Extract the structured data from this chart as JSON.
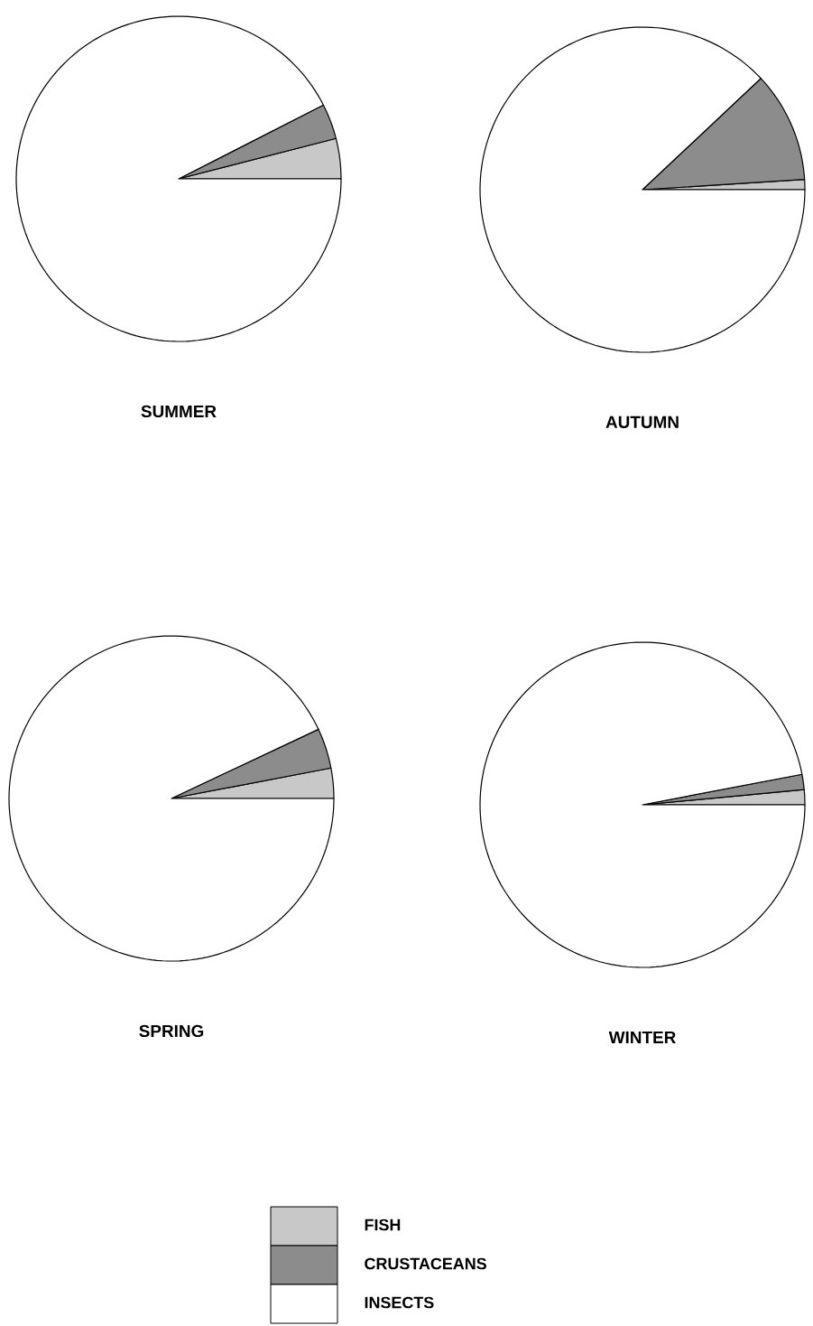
{
  "chart_data": [
    {
      "type": "pie",
      "title": "SUMMER",
      "categories": [
        null,
        null,
        null
      ],
      "values": [
        4,
        3.5,
        92.5
      ],
      "colors": [
        "#c8c8c8",
        "#8c8c8c",
        "#ffffff"
      ]
    },
    {
      "type": "pie",
      "title": "AUTUMN",
      "categories": [
        null,
        null,
        null
      ],
      "values": [
        1,
        11,
        88
      ],
      "colors": [
        "#c8c8c8",
        "#8c8c8c",
        "#ffffff"
      ]
    },
    {
      "type": "pie",
      "title": "SPRING",
      "categories": [
        null,
        null,
        null
      ],
      "values": [
        3,
        4,
        93
      ],
      "colors": [
        "#c8c8c8",
        "#8c8c8c",
        "#ffffff"
      ]
    },
    {
      "type": "pie",
      "title": "WINTER",
      "categories": [
        "FISH",
        "CRUSTACEANS",
        "INSECTS"
      ],
      "values": [
        1.5,
        1.5,
        97
      ],
      "colors": [
        "#c8c8c8",
        "#8c8c8c",
        "#ffffff"
      ],
      "legend": "bottom"
    }
  ]
}
